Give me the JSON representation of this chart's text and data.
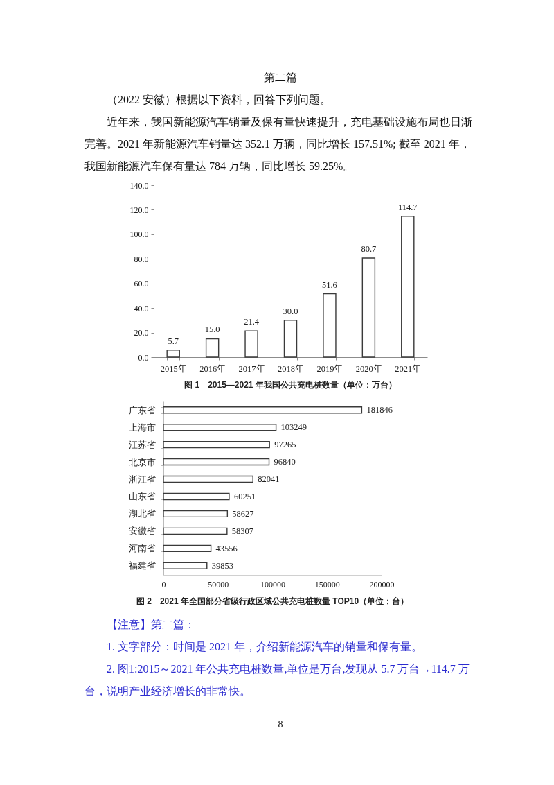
{
  "chart_data": [
    {
      "type": "bar",
      "title": "图 1　2015—2021 年我国公共充电桩数量（单位：万台）",
      "annotations": [
        "第二篇",
        "（2022 安徽）根据以下资料，回答下列问题。",
        "近年来，我国新能源汽车销量及保有量快速提升，充电基础设施布局也日渐完善。2021 年新能源汽车销量达 352.1 万辆，同比增长 157.51%; 截至 2021 年，我国新能源汽车保有量达 784 万辆，同比增长 59.25%。"
      ],
      "categories": [
        "2015年",
        "2016年",
        "2017年",
        "2018年",
        "2019年",
        "2020年",
        "2021年"
      ],
      "values": [
        5.7,
        15.0,
        21.4,
        30.0,
        51.6,
        80.7,
        114.7
      ],
      "value_labels": [
        "5.7",
        "15.0",
        "21.4",
        "30.0",
        "51.6",
        "80.7",
        "114.7"
      ],
      "color": "#ffffff",
      "ylim": [
        0,
        140
      ],
      "yticks": [
        {
          "value": 0,
          "label": "0.0"
        },
        {
          "value": 20,
          "label": "20.0"
        },
        {
          "value": 40,
          "label": "40.0"
        },
        {
          "value": 60,
          "label": "60.0"
        },
        {
          "value": 80,
          "label": "80.0"
        },
        {
          "value": 100,
          "label": "100.0"
        },
        {
          "value": 120,
          "label": "120.0"
        },
        {
          "value": 140,
          "label": "140.0"
        }
      ]
    },
    {
      "type": "bar",
      "orientation": "horizontal",
      "title": "图 2　2021 年全国部分省级行政区域公共充电桩数量 TOP10（单位：台）",
      "annotations": [
        "【注意】第二篇：",
        "1. 文字部分：时间是 2021 年，介绍新能源汽车的销量和保有量。",
        "2. 图1:2015～2021 年公共充电桩数量,单位是万台,发现从 5.7 万台→114.7 万台，说明产业经济增长的非常快。",
        "8"
      ],
      "categories": [
        "广东省",
        "上海市",
        "江苏省",
        "北京市",
        "浙江省",
        "山东省",
        "湖北省",
        "安徽省",
        "河南省",
        "福建省"
      ],
      "values": [
        181846,
        103249,
        97265,
        96840,
        82041,
        60251,
        58627,
        58307,
        43556,
        39853
      ],
      "data_labels": true,
      "color": "#ffffff",
      "xlim": [
        0,
        200000
      ],
      "xticks": [
        0,
        50000,
        100000,
        150000,
        200000
      ]
    }
  ]
}
